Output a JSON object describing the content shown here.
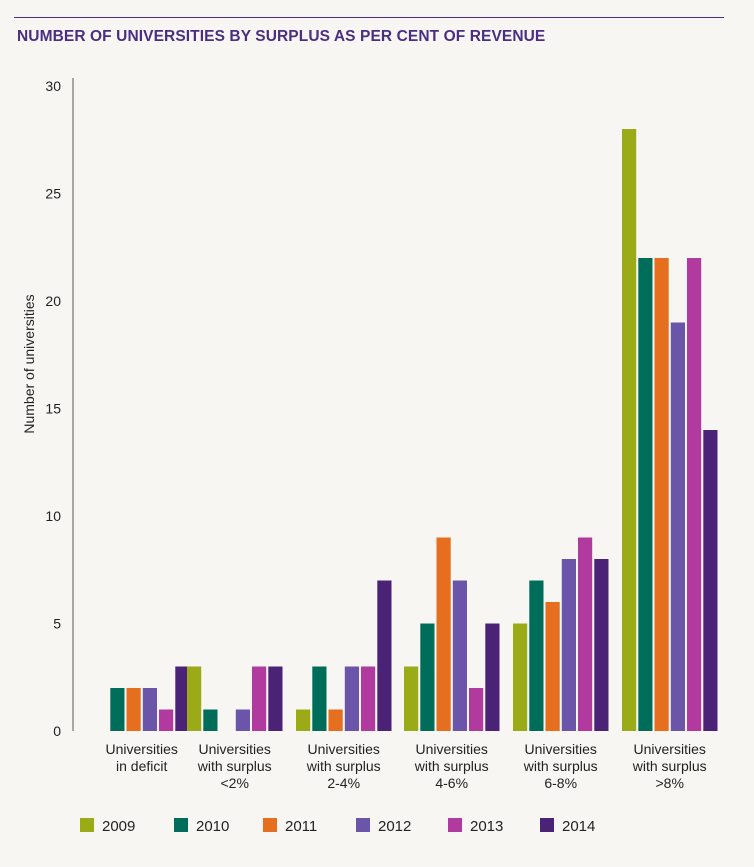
{
  "chart_data": {
    "type": "bar",
    "title": "NUMBER OF UNIVERSITIES BY SURPLUS AS PER CENT OF REVENUE",
    "ylabel": "Number of universities",
    "xlabel": "",
    "ylim": [
      0,
      30
    ],
    "yticks": [
      0,
      5,
      10,
      15,
      20,
      25,
      30
    ],
    "grid": false,
    "legend_position": "bottom",
    "categories": [
      [
        "Universities",
        "in deficit"
      ],
      [
        "Universities",
        "with surplus",
        "<2%"
      ],
      [
        "Universities",
        "with surplus",
        "2-4%"
      ],
      [
        "Universities",
        "with surplus",
        "4-6%"
      ],
      [
        "Universities",
        "with surplus",
        "6-8%"
      ],
      [
        "Universities",
        "with surplus",
        ">8%"
      ]
    ],
    "series": [
      {
        "name": "2009",
        "color": "#9aab17",
        "values": [
          0,
          3,
          1,
          3,
          5,
          28
        ]
      },
      {
        "name": "2010",
        "color": "#006d5b",
        "values": [
          2,
          1,
          3,
          5,
          7,
          22
        ]
      },
      {
        "name": "2011",
        "color": "#e56f1e",
        "values": [
          2,
          0,
          1,
          9,
          6,
          22
        ]
      },
      {
        "name": "2012",
        "color": "#6a55a8",
        "values": [
          2,
          1,
          3,
          7,
          8,
          19
        ]
      },
      {
        "name": "2013",
        "color": "#b13a9e",
        "values": [
          1,
          3,
          3,
          2,
          9,
          22
        ]
      },
      {
        "name": "2014",
        "color": "#4a2377",
        "values": [
          3,
          3,
          7,
          5,
          8,
          14
        ]
      }
    ]
  }
}
